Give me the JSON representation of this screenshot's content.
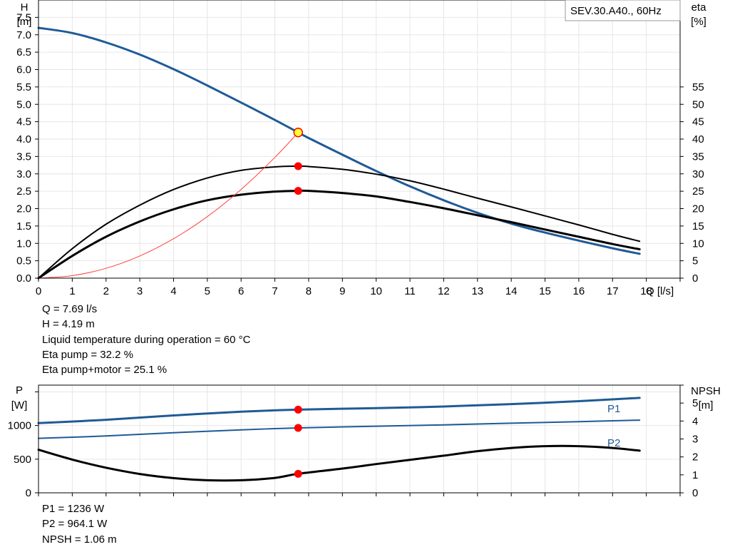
{
  "chart_data": [
    {
      "type": "line",
      "title": "SEV.30.A40., 60Hz",
      "xlabel": "Q [l/s]",
      "ylabel_left": "H",
      "ylabel_left_unit": "[m]",
      "ylabel_right": "eta",
      "ylabel_right_unit": "[%]",
      "xlim": [
        0,
        19
      ],
      "ylim_left": [
        0,
        8.0
      ],
      "ylim_right": [
        0,
        80
      ],
      "x_ticks": [
        "0",
        "1",
        "2",
        "3",
        "4",
        "5",
        "6",
        "7",
        "8",
        "9",
        "10",
        "11",
        "12",
        "13",
        "14",
        "15",
        "16",
        "17",
        "18"
      ],
      "y_left_ticks": [
        "0.0",
        "0.5",
        "1.0",
        "1.5",
        "2.0",
        "2.5",
        "3.0",
        "3.5",
        "4.0",
        "4.5",
        "5.0",
        "5.5",
        "6.0",
        "6.5",
        "7.0",
        "7.5"
      ],
      "y_right_ticks": [
        "0",
        "5",
        "10",
        "15",
        "20",
        "25",
        "30",
        "35",
        "40",
        "45",
        "50",
        "55"
      ],
      "grid": true,
      "series": [
        {
          "key": "head",
          "axis": "left",
          "color": "#1f5a96",
          "width": 3,
          "x": [
            0,
            1,
            2,
            3,
            4,
            5,
            6,
            7,
            7.69,
            8,
            9,
            10,
            11,
            12,
            13,
            14,
            15,
            16,
            17,
            17.8
          ],
          "y": [
            7.2,
            7.05,
            6.78,
            6.43,
            6.01,
            5.54,
            5.05,
            4.55,
            4.19,
            4.03,
            3.55,
            3.08,
            2.64,
            2.24,
            1.88,
            1.57,
            1.31,
            1.08,
            0.86,
            0.7
          ]
        },
        {
          "key": "eta_pump",
          "axis": "right",
          "color": "#000000",
          "width": 2,
          "x": [
            0,
            1,
            2,
            3,
            4,
            5,
            6,
            7,
            7.69,
            8,
            9,
            10,
            11,
            12,
            13,
            14,
            15,
            16,
            17,
            17.8
          ],
          "y": [
            0,
            8.5,
            15.5,
            21.0,
            25.5,
            28.8,
            31.0,
            32.0,
            32.2,
            32.1,
            31.3,
            29.9,
            28.0,
            25.6,
            23.0,
            20.5,
            17.9,
            15.3,
            12.6,
            10.6
          ]
        },
        {
          "key": "eta_total",
          "axis": "right",
          "color": "#000000",
          "width": 3,
          "x": [
            0,
            1,
            2,
            3,
            4,
            5,
            6,
            7,
            7.69,
            8,
            9,
            10,
            11,
            12,
            13,
            14,
            15,
            16,
            17,
            17.8
          ],
          "y": [
            0,
            6.4,
            11.9,
            16.3,
            19.8,
            22.4,
            24.0,
            24.9,
            25.1,
            25.1,
            24.5,
            23.5,
            21.9,
            20.1,
            18.1,
            16.1,
            14.0,
            11.9,
            9.8,
            8.3
          ]
        },
        {
          "key": "system",
          "axis": "left",
          "color": "#ff4040",
          "width": 1,
          "x": [
            0,
            1,
            2,
            3,
            4,
            5,
            6,
            7,
            7.69
          ],
          "y": [
            0,
            0.071,
            0.283,
            0.638,
            1.134,
            1.771,
            2.551,
            3.472,
            4.19
          ]
        }
      ],
      "operating_points": [
        {
          "x": 7.69,
          "y": 4.19,
          "axis": "left",
          "style": "yellow"
        },
        {
          "x": 7.69,
          "y": 32.2,
          "axis": "right",
          "style": "red"
        },
        {
          "x": 7.69,
          "y": 25.1,
          "axis": "right",
          "style": "red"
        }
      ]
    },
    {
      "type": "line",
      "xlabel": "",
      "ylabel_left": "P",
      "ylabel_left_unit": "[W]",
      "ylabel_right": "NPSH",
      "ylabel_right_unit": "[m]",
      "xlim": [
        0,
        19
      ],
      "ylim_left": [
        0,
        1600
      ],
      "ylim_right": [
        0,
        6
      ],
      "y_left_ticks": [
        "0",
        "500",
        "1000"
      ],
      "y_right_ticks": [
        "0",
        "1",
        "2",
        "3",
        "4",
        "5"
      ],
      "grid": true,
      "series": [
        {
          "key": "p1",
          "name": "P1",
          "axis": "left",
          "color": "#1f5a96",
          "width": 3,
          "x": [
            0,
            2,
            4,
            6,
            7.69,
            10,
            12,
            14,
            16,
            17.8
          ],
          "y": [
            1036,
            1085,
            1150,
            1205,
            1236,
            1258,
            1282,
            1318,
            1362,
            1410
          ]
        },
        {
          "key": "p2",
          "name": "P2",
          "axis": "left",
          "color": "#1f5a96",
          "width": 2,
          "x": [
            0,
            2,
            4,
            6,
            7.69,
            10,
            12,
            14,
            16,
            17.8
          ],
          "y": [
            810,
            845,
            893,
            935,
            964,
            990,
            1010,
            1034,
            1058,
            1080
          ]
        },
        {
          "key": "npsh",
          "axis": "right",
          "color": "#000000",
          "width": 3,
          "x": [
            0,
            1,
            2,
            3,
            4,
            5,
            6,
            7,
            7.69,
            9,
            10,
            11,
            12,
            13,
            14,
            15,
            16,
            17,
            17.8
          ],
          "y": [
            2.4,
            1.85,
            1.4,
            1.05,
            0.82,
            0.7,
            0.7,
            0.83,
            1.06,
            1.35,
            1.6,
            1.84,
            2.07,
            2.32,
            2.5,
            2.6,
            2.6,
            2.5,
            2.35
          ]
        }
      ],
      "operating_points": [
        {
          "x": 7.69,
          "y": 1236,
          "axis": "left",
          "style": "red"
        },
        {
          "x": 7.69,
          "y": 964,
          "axis": "left",
          "style": "red"
        },
        {
          "x": 7.69,
          "y": 1.06,
          "axis": "right",
          "style": "red"
        }
      ]
    }
  ],
  "info_top": [
    "Q = 7.69 l/s",
    "H = 4.19 m",
    "Liquid temperature during operation = 60 °C",
    "Eta pump = 32.2 %",
    "Eta pump+motor = 25.1 %"
  ],
  "info_bottom": [
    "P1 = 1236 W",
    "P2 = 964.1 W",
    "NPSH = 1.06 m"
  ],
  "colors": {
    "head": "#1f5a96",
    "grid": "#e6e6e6",
    "point_red": "#ff0000",
    "point_yellow": "#ffff33"
  }
}
